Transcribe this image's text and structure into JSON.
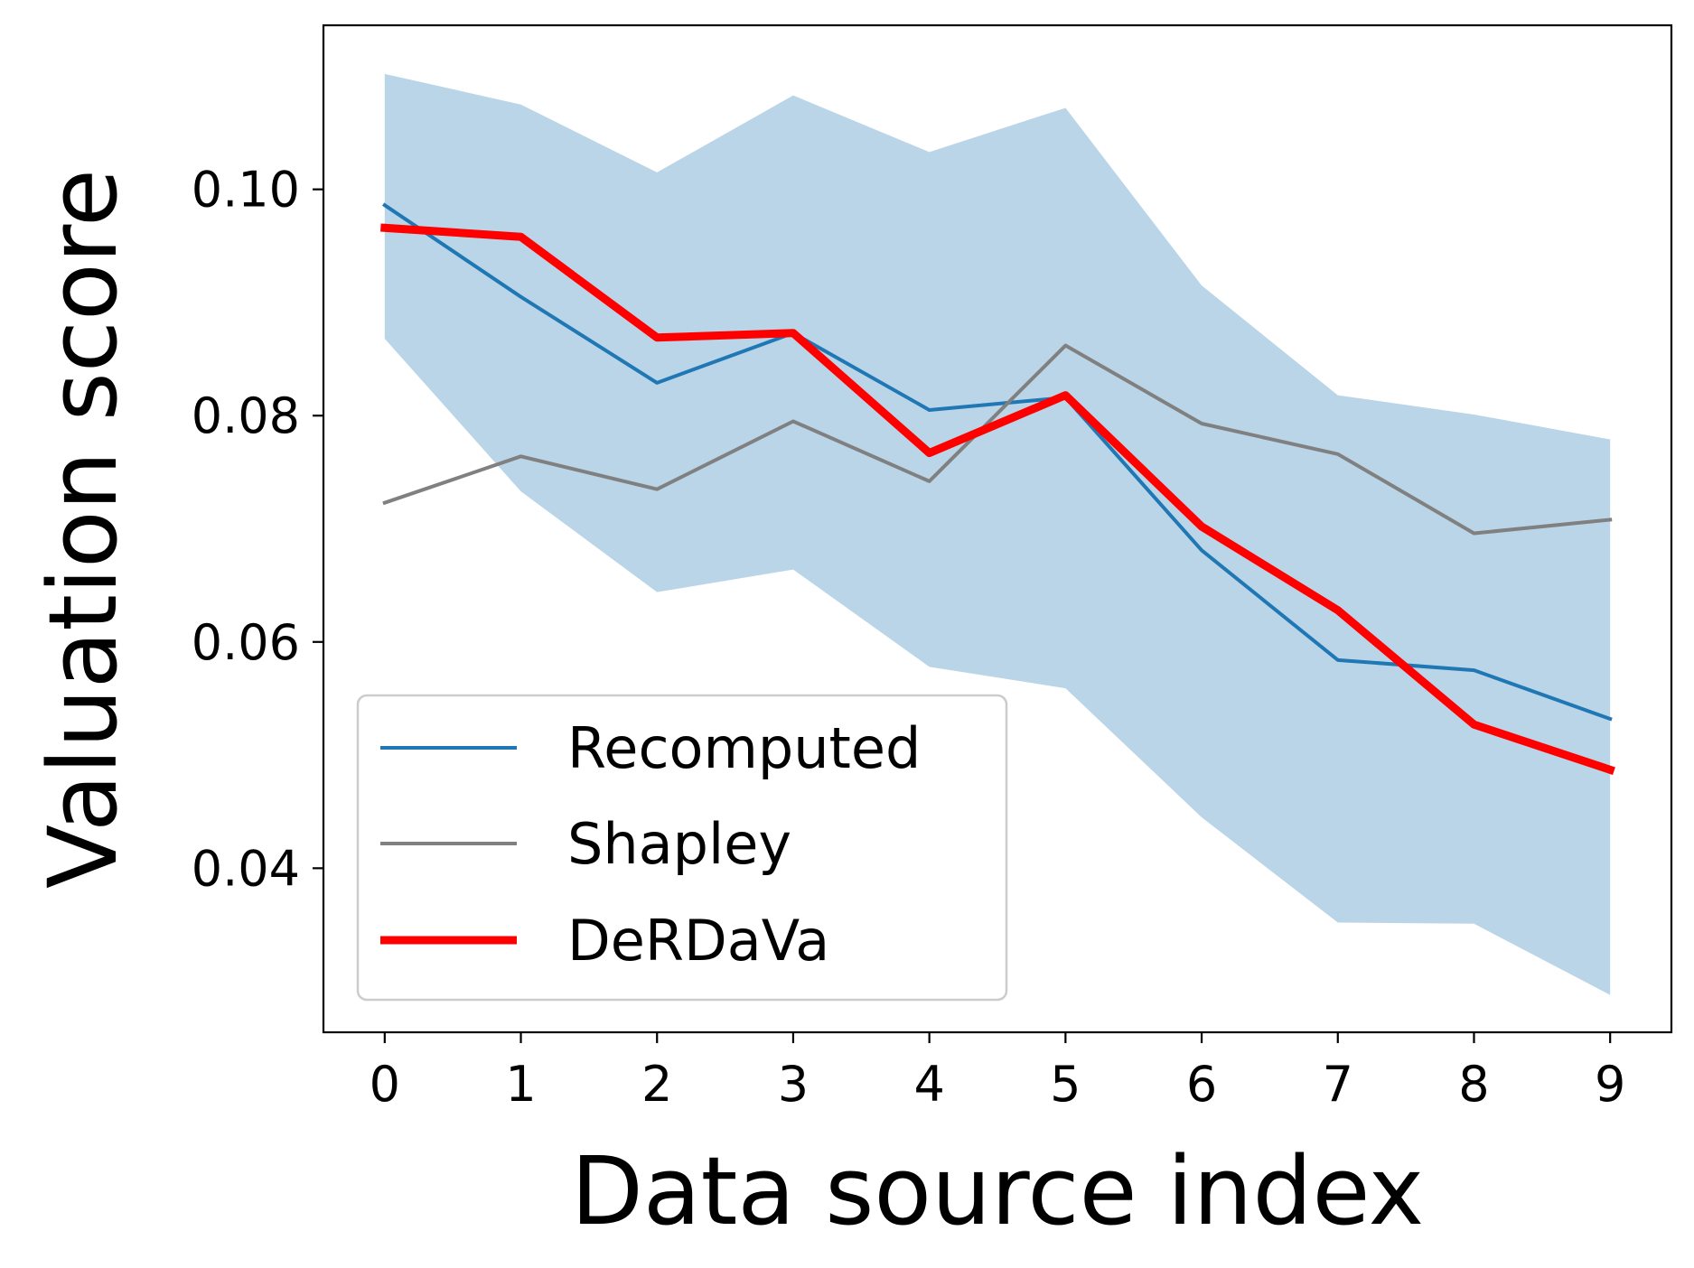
{
  "chart_data": {
    "type": "line",
    "xlabel": "Data source index",
    "ylabel": "Valuation score",
    "xlim": [
      -0.45,
      9.45
    ],
    "ylim": [
      0.0255,
      0.1145
    ],
    "x": [
      0,
      1,
      2,
      3,
      4,
      5,
      6,
      7,
      8,
      9
    ],
    "x_ticks": [
      0,
      1,
      2,
      3,
      4,
      5,
      6,
      7,
      8,
      9
    ],
    "x_tick_labels": [
      "0",
      "1",
      "2",
      "3",
      "4",
      "5",
      "6",
      "7",
      "8",
      "9"
    ],
    "y_ticks": [
      0.04,
      0.06,
      0.08,
      0.1
    ],
    "y_tick_labels": [
      "0.04",
      "0.06",
      "0.08",
      "0.10"
    ],
    "grid": false,
    "legend_position": "lower-left",
    "band": {
      "upper": [
        0.1102,
        0.1075,
        0.1015,
        0.1083,
        0.1033,
        0.1072,
        0.0915,
        0.0818,
        0.0801,
        0.0779
      ],
      "lower": [
        0.0868,
        0.0733,
        0.0644,
        0.0664,
        0.0578,
        0.0559,
        0.0445,
        0.0352,
        0.0351,
        0.0288
      ],
      "color": "#bad5e8"
    },
    "series": [
      {
        "name": "Recomputed",
        "values": [
          0.0986,
          0.0905,
          0.0829,
          0.0873,
          0.0805,
          0.0816,
          0.0681,
          0.0584,
          0.0575,
          0.0532
        ],
        "color": "#1f77b4",
        "width": "thin"
      },
      {
        "name": "Shapley",
        "values": [
          0.0723,
          0.0764,
          0.0735,
          0.0795,
          0.0742,
          0.0862,
          0.0793,
          0.0766,
          0.0696,
          0.0708
        ],
        "color": "#808080",
        "width": "thin"
      },
      {
        "name": "DeRDaVa",
        "values": [
          0.0966,
          0.0958,
          0.0869,
          0.0873,
          0.0767,
          0.0818,
          0.0702,
          0.0628,
          0.0527,
          0.0487
        ],
        "color": "#ff0000",
        "width": "thick"
      }
    ]
  }
}
